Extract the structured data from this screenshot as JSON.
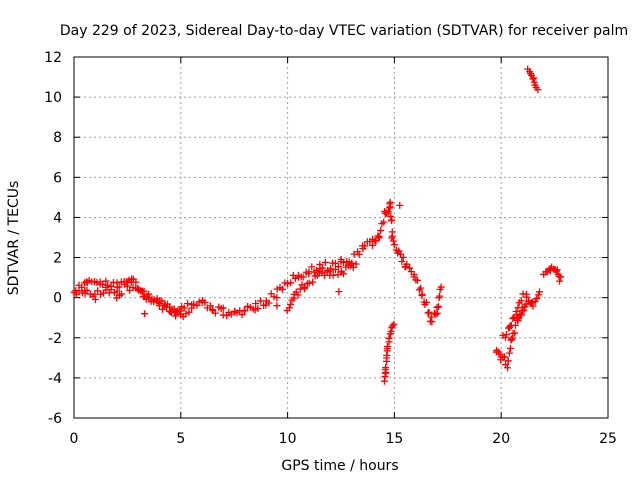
{
  "chart_data": {
    "type": "scatter",
    "title": "Day 229 of 2023, Sidereal Day-to-day VTEC variation (SDTVAR) for receiver palm",
    "xlabel": "GPS time / hours",
    "ylabel": "SDTVAR / TECUs",
    "xlim": [
      0,
      25
    ],
    "ylim": [
      -6,
      12
    ],
    "xticks": [
      0,
      5,
      10,
      15,
      20,
      25
    ],
    "yticks": [
      -6,
      -4,
      -2,
      0,
      2,
      4,
      6,
      8,
      10,
      12
    ],
    "grid": true,
    "marker": "+",
    "color": "#ff0000",
    "series": [
      {
        "name": "SDTVAR",
        "segments": [
          {
            "points": [
              [
                0.0,
                0.1
              ],
              [
                0.5,
                0.3
              ],
              [
                1.0,
                0.1
              ],
              [
                1.5,
                0.4
              ],
              [
                2.0,
                0.2
              ],
              [
                2.5,
                0.6
              ],
              [
                3.0,
                0.3
              ],
              [
                3.5,
                0.0
              ],
              [
                4.0,
                -0.3
              ],
              [
                4.5,
                -0.6
              ],
              [
                5.0,
                -0.8
              ],
              [
                5.5,
                -0.5
              ],
              [
                6.0,
                -0.3
              ],
              [
                6.5,
                -0.6
              ],
              [
                7.0,
                -0.7
              ],
              [
                7.5,
                -0.8
              ],
              [
                8.0,
                -0.6
              ],
              [
                8.5,
                -0.4
              ],
              [
                9.0,
                -0.2
              ],
              [
                9.5,
                0.2
              ],
              [
                10.0,
                0.7
              ],
              [
                10.5,
                1.1
              ],
              [
                11.0,
                1.4
              ],
              [
                11.5,
                1.6
              ],
              [
                12.0,
                1.5
              ],
              [
                12.5,
                1.7
              ],
              [
                13.0,
                1.9
              ],
              [
                13.5,
                2.4
              ],
              [
                14.0,
                2.8
              ],
              [
                14.3,
                3.2
              ],
              [
                14.6,
                4.3
              ],
              [
                14.8,
                4.6
              ],
              [
                14.9,
                3.2
              ],
              [
                15.2,
                2.1
              ],
              [
                15.5,
                1.7
              ],
              [
                15.9,
                1.2
              ],
              [
                16.3,
                0.2
              ],
              [
                16.7,
                -1.1
              ],
              [
                17.0,
                -0.6
              ],
              [
                17.2,
                0.6
              ]
            ],
            "spread": 0.45
          },
          {
            "points": [
              [
                0.1,
                0.4
              ],
              [
                0.6,
                0.8
              ],
              [
                1.2,
                0.8
              ],
              [
                2.0,
                0.6
              ],
              [
                2.7,
                0.9
              ],
              [
                3.3,
                0.2
              ],
              [
                4.0,
                -0.4
              ],
              [
                4.7,
                -0.7
              ],
              [
                5.3,
                -0.4
              ]
            ],
            "spread": 0.3
          },
          {
            "points": [
              [
                10.0,
                -0.5
              ],
              [
                10.3,
                0.0
              ],
              [
                10.8,
                0.6
              ],
              [
                11.5,
                1.2
              ],
              [
                12.5,
                1.3
              ],
              [
                13.2,
                1.6
              ]
            ],
            "spread": 0.35
          },
          {
            "points": [
              [
                14.55,
                -4.2
              ],
              [
                14.6,
                -3.5
              ],
              [
                14.65,
                -2.6
              ],
              [
                14.8,
                -1.8
              ],
              [
                14.95,
                -1.3
              ]
            ],
            "spread": 0.2
          },
          {
            "points": [
              [
                19.75,
                -2.6
              ],
              [
                20.0,
                -3.0
              ],
              [
                20.3,
                -3.3
              ],
              [
                20.5,
                -2.0
              ],
              [
                20.8,
                -1.0
              ],
              [
                21.0,
                -0.6
              ],
              [
                21.2,
                0.0
              ],
              [
                21.5,
                -0.4
              ],
              [
                21.8,
                0.3
              ]
            ],
            "spread": 0.4
          },
          {
            "points": [
              [
                20.1,
                -2.0
              ],
              [
                20.4,
                -1.5
              ],
              [
                20.7,
                -0.8
              ],
              [
                21.0,
                0.1
              ]
            ],
            "spread": 0.25
          },
          {
            "points": [
              [
                21.25,
                11.4
              ],
              [
                21.5,
                10.9
              ],
              [
                21.7,
                10.4
              ]
            ],
            "spread": 0.12
          },
          {
            "points": [
              [
                22.0,
                1.0
              ],
              [
                22.3,
                1.5
              ],
              [
                22.6,
                1.3
              ],
              [
                22.8,
                0.9
              ]
            ],
            "spread": 0.35
          }
        ],
        "isolated": [
          [
            3.3,
            -0.8
          ],
          [
            9.5,
            -0.4
          ],
          [
            12.4,
            0.3
          ],
          [
            15.25,
            4.6
          ]
        ]
      }
    ]
  }
}
